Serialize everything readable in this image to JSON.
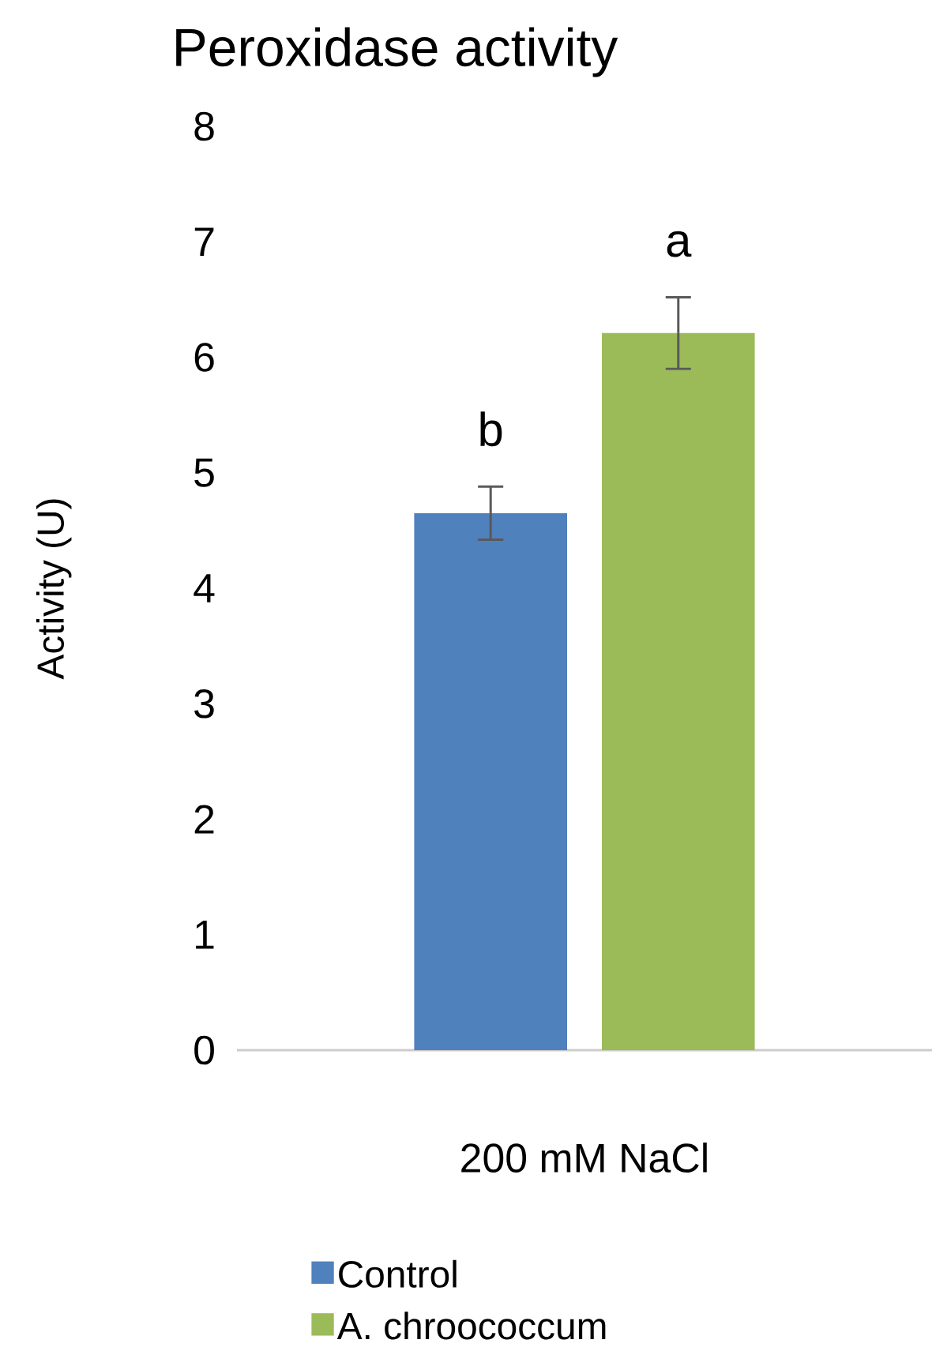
{
  "chart_data": {
    "type": "bar",
    "title": "Peroxidase activity",
    "ylabel": "Activity (U)",
    "categories": [
      "200 mM NaCl"
    ],
    "series": [
      {
        "name": "Control",
        "color": "#4f81bd",
        "values": [
          4.65
        ],
        "errors": [
          0.23
        ]
      },
      {
        "name": "A. chroococcum",
        "color": "#9bbb59",
        "values": [
          6.21
        ],
        "errors": [
          0.31
        ]
      }
    ],
    "annotations": [
      "b",
      "a"
    ],
    "ylim": [
      0,
      8
    ],
    "yticks": [
      0,
      1,
      2,
      3,
      4,
      5,
      6,
      7,
      8
    ],
    "grid": false,
    "legend": "bottom"
  }
}
